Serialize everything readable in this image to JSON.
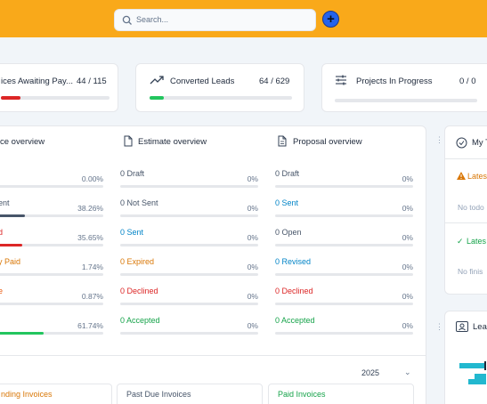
{
  "search": {
    "placeholder": "Search..."
  },
  "stats": [
    {
      "title": "ices Awaiting Pay...",
      "value": "44 / 115",
      "fill_pct": 18,
      "fill_color": "#dc2626"
    },
    {
      "title": "Converted Leads",
      "value": "64 / 629",
      "fill_pct": 10,
      "fill_color": "#22c55e"
    },
    {
      "title": "Projects In Progress",
      "value": "0 / 0",
      "fill_pct": 0,
      "fill_color": "#22c55e"
    }
  ],
  "overview": {
    "invoice": {
      "title": "ce overview",
      "rows": [
        {
          "label": "",
          "pct": "0.00%",
          "fill": 0,
          "color": "#94a3b8",
          "bar_color": "#9ca3af"
        },
        {
          "label": "ent",
          "pct": "38.26%",
          "fill": 38.26,
          "color": "#475569",
          "bar_color": "#475569"
        },
        {
          "label": "d",
          "pct": "35.65%",
          "fill": 35.65,
          "color": "#dc2626",
          "bar_color": "#dc2626"
        },
        {
          "label": "y Paid",
          "pct": "1.74%",
          "fill": 1.74,
          "color": "#d97706",
          "bar_color": "#d97706"
        },
        {
          "label": "e",
          "pct": "0.87%",
          "fill": 0.87,
          "color": "#ea580c",
          "bar_color": "#ea580c"
        },
        {
          "label": "",
          "pct": "61.74%",
          "fill": 61.74,
          "color": "#16a34a",
          "bar_color": "#22c55e"
        }
      ]
    },
    "estimate": {
      "title": "Estimate overview",
      "rows": [
        {
          "label": "0 Draft",
          "pct": "0%",
          "color": "#475569"
        },
        {
          "label": "0 Not Sent",
          "pct": "0%",
          "color": "#475569"
        },
        {
          "label": "0 Sent",
          "pct": "0%",
          "color": "#0284c7"
        },
        {
          "label": "0 Expired",
          "pct": "0%",
          "color": "#d97706"
        },
        {
          "label": "0 Declined",
          "pct": "0%",
          "color": "#dc2626"
        },
        {
          "label": "0 Accepted",
          "pct": "0%",
          "color": "#16a34a"
        }
      ]
    },
    "proposal": {
      "title": "Proposal overview",
      "rows": [
        {
          "label": "0 Draft",
          "pct": "0%",
          "color": "#475569"
        },
        {
          "label": "0 Sent",
          "pct": "0%",
          "color": "#0284c7"
        },
        {
          "label": "0 Open",
          "pct": "0%",
          "color": "#475569"
        },
        {
          "label": "0 Revised",
          "pct": "0%",
          "color": "#0284c7"
        },
        {
          "label": "0 Declined",
          "pct": "0%",
          "color": "#dc2626"
        },
        {
          "label": "0 Accepted",
          "pct": "0%",
          "color": "#16a34a"
        }
      ]
    }
  },
  "year_filter": "2025",
  "invoice_tabs": [
    {
      "label": "nding Invoices",
      "color": "#d97706"
    },
    {
      "label": "Past Due Invoices",
      "color": "#475569"
    },
    {
      "label": "Paid Invoices",
      "color": "#16a34a"
    }
  ],
  "todo": {
    "title": "My T",
    "latest_label": "Lates",
    "empty_text": "No todo",
    "finished_label": "Lates",
    "finished_empty": "No finis"
  },
  "leads_widget": {
    "title": "Lea"
  }
}
